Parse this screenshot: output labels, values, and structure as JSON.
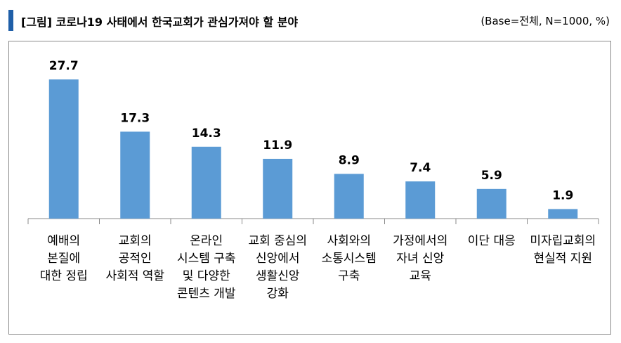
{
  "header": {
    "title": "[그림] 코로나19 사태에서 한국교회가 관심가져야 할 분야",
    "base": "(Base=전체, N=1000, %)"
  },
  "colors": {
    "bar": "#5b9bd5",
    "accent": "#1f5fa8",
    "axis": "#8a8a8a"
  },
  "chart_data": {
    "type": "bar",
    "title": "",
    "xlabel": "",
    "ylabel": "",
    "ylim": [
      0,
      30
    ],
    "grid": false,
    "categories": [
      [
        "예배의",
        "본질에",
        "대한 정립"
      ],
      [
        "교회의",
        "공적인",
        "사회적 역할"
      ],
      [
        "온라인",
        "시스템 구축",
        "및 다양한",
        "콘텐츠 개발"
      ],
      [
        "교회 중심의",
        "신앙에서",
        "생활신앙",
        "강화"
      ],
      [
        "사회와의",
        "소통시스템",
        "구축"
      ],
      [
        "가정에서의",
        "자녀 신앙",
        "교육"
      ],
      [
        "이단 대응"
      ],
      [
        "미자립교회의",
        "현실적 지원"
      ]
    ],
    "values": [
      27.7,
      17.3,
      14.3,
      11.9,
      8.9,
      7.4,
      5.9,
      1.9
    ],
    "value_labels": [
      "27.7",
      "17.3",
      "14.3",
      "11.9",
      "8.9",
      "7.4",
      "5.9",
      "1.9"
    ]
  }
}
